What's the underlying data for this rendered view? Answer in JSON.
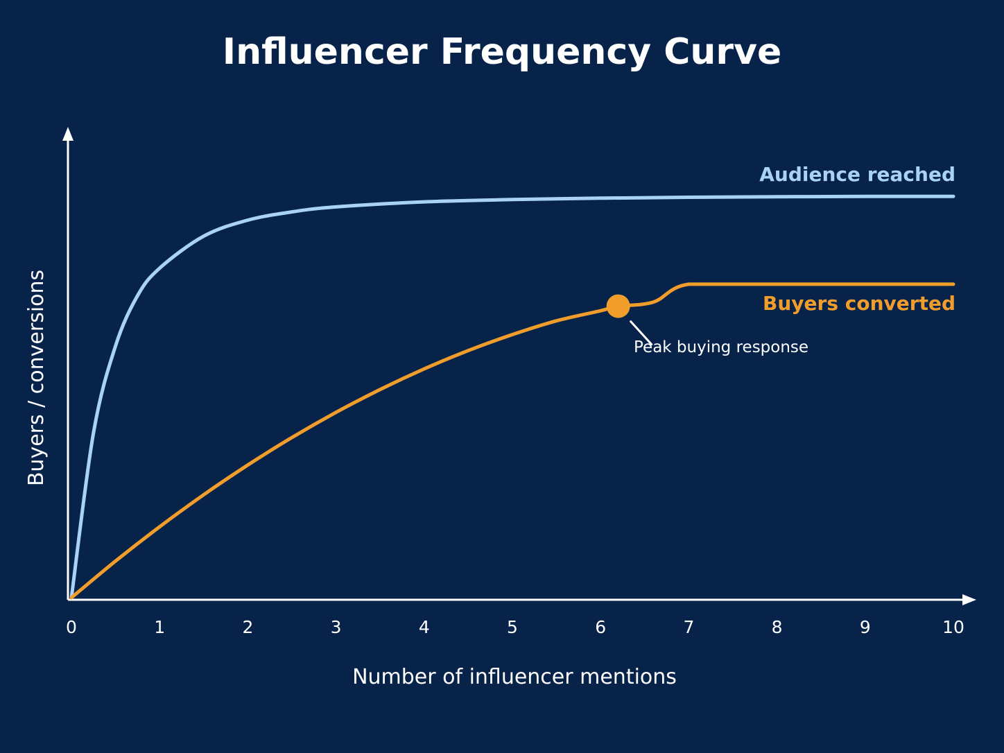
{
  "chart_data": {
    "type": "line",
    "title": "Influencer Frequency Curve",
    "xlabel": "Number of influencer mentions",
    "ylabel": "Buyers / conversions",
    "xlim": [
      0,
      10
    ],
    "ylim": [
      0,
      100
    ],
    "x_ticks": [
      0,
      1,
      2,
      3,
      4,
      5,
      6,
      7,
      8,
      9,
      10
    ],
    "grid": false,
    "legend": "inline labels at right end of each line",
    "series": [
      {
        "name": "Audience reached",
        "color": "#a9d3f5",
        "x": [
          0,
          0.25,
          0.5,
          0.75,
          1,
          1.5,
          2,
          2.5,
          3,
          4,
          5,
          6,
          7,
          8,
          9,
          10
        ],
        "y": [
          0,
          36,
          55,
          66,
          72,
          79,
          82.5,
          84.3,
          85.4,
          86.5,
          87.0,
          87.3,
          87.5,
          87.6,
          87.7,
          87.7
        ]
      },
      {
        "name": "Buyers converted",
        "color": "#f19d2b",
        "x": [
          0,
          0.5,
          1,
          1.5,
          2,
          2.5,
          3,
          3.5,
          4,
          4.5,
          5,
          5.5,
          6,
          6.2,
          6.6,
          7,
          8,
          9,
          10
        ],
        "y": [
          0,
          8,
          15.5,
          22.5,
          29,
          35,
          40.5,
          45.5,
          50,
          54,
          57.5,
          60.5,
          62.7,
          63.7,
          64.6,
          68.5,
          68.5,
          68.5,
          68.5
        ]
      }
    ],
    "annotations": [
      {
        "text": "Peak buying response",
        "x": 6.2,
        "y": 63.7,
        "series": "Buyers converted"
      }
    ],
    "style": {
      "background": "#08234a",
      "axis_color": "#ffffff",
      "text_color": "#ffffff"
    }
  }
}
